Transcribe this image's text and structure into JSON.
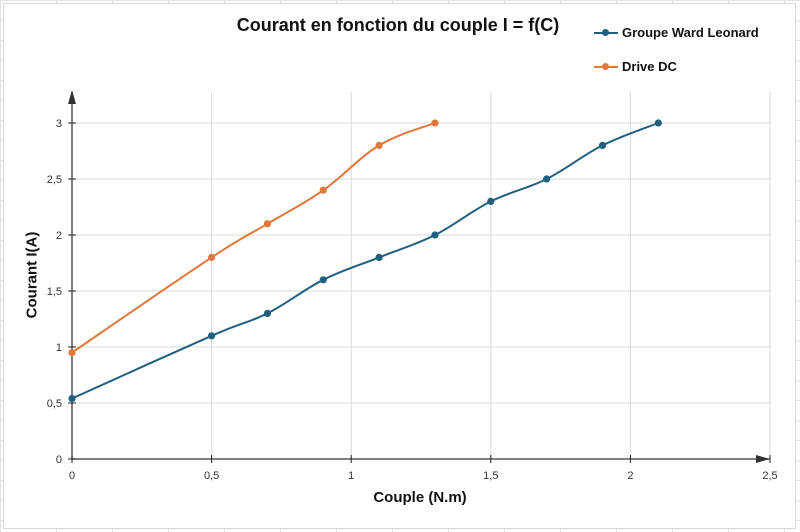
{
  "chart_data": {
    "type": "line",
    "title": "Courant en fonction du couple I = f(C)",
    "xlabel": "Couple (N.m)",
    "ylabel": "Courant I(A)",
    "xlim": [
      0,
      2.5
    ],
    "ylim": [
      0,
      3.25
    ],
    "x_ticks": [
      "0",
      "0,5",
      "1",
      "1,5",
      "2",
      "2,5"
    ],
    "y_ticks": [
      "0",
      "0,5",
      "1",
      "1,5",
      "2",
      "2,5",
      "3"
    ],
    "grid": true,
    "legend_position": "top-right",
    "smoothed": true,
    "series": [
      {
        "name": "Groupe Ward Leonard",
        "color": "#1f5f7f",
        "x": [
          0,
          0.5,
          0.7,
          0.9,
          1.1,
          1.3,
          1.5,
          1.7,
          1.9,
          2.1
        ],
        "y": [
          0.54,
          1.1,
          1.3,
          1.6,
          1.8,
          2.0,
          2.3,
          2.5,
          2.8,
          3.0
        ]
      },
      {
        "name": "Drive DC",
        "color": "#e0783a",
        "x": [
          0,
          0.5,
          0.7,
          0.9,
          1.1,
          1.3
        ],
        "y": [
          0.95,
          1.8,
          2.1,
          2.4,
          2.8,
          3.0
        ]
      }
    ]
  }
}
